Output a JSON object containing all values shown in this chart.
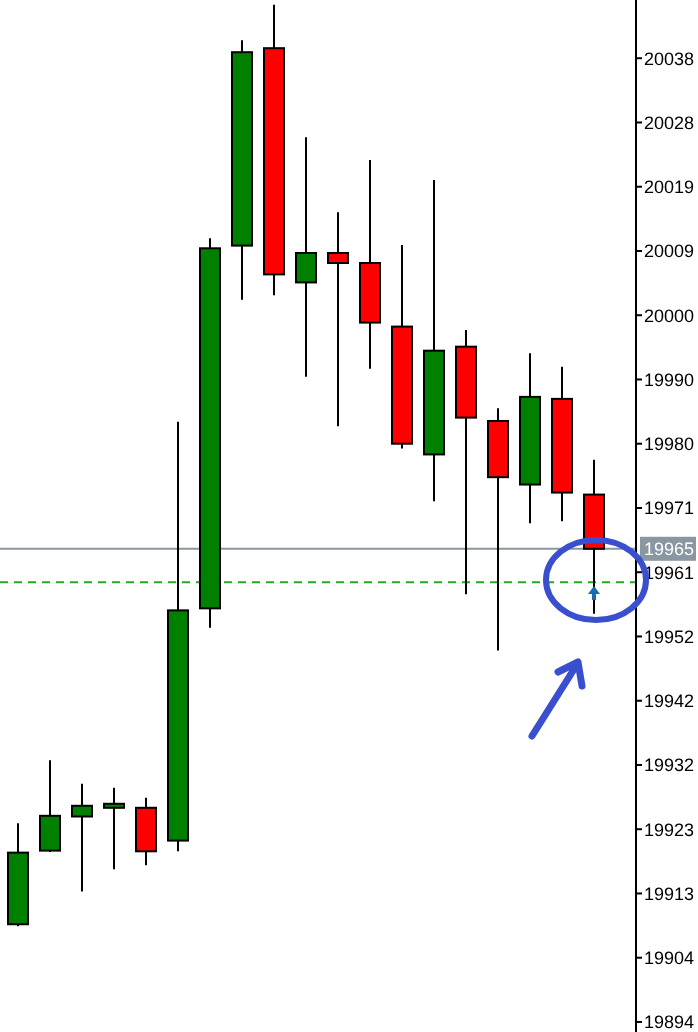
{
  "chart_data": {
    "type": "candlestick",
    "categories": [
      null,
      null,
      null,
      null,
      null,
      null,
      null,
      null,
      null,
      null,
      null,
      null,
      null,
      null,
      null,
      null,
      null,
      null,
      null
    ],
    "ohlc": [
      [
        19908.6,
        19923.7,
        19908.3,
        19919.3
      ],
      [
        19919.6,
        19933.1,
        19919.4,
        19924.8
      ],
      [
        19924.7,
        19929.6,
        19913.5,
        19926.3
      ],
      [
        19926.0,
        19929.0,
        19916.8,
        19926.6
      ],
      [
        19926.0,
        19927.5,
        19917.4,
        19919.5
      ],
      [
        19921.1,
        19983.7,
        19919.5,
        19955.5
      ],
      [
        19955.8,
        20011.1,
        19952.9,
        20009.6
      ],
      [
        20010.0,
        20040.7,
        20001.9,
        20038.9
      ],
      [
        20039.5,
        20046.0,
        20002.6,
        20005.7
      ],
      [
        20004.5,
        20026.2,
        19990.4,
        20008.9
      ],
      [
        20008.9,
        20015.0,
        19983.0,
        20007.4
      ],
      [
        20007.4,
        20022.8,
        19991.6,
        19998.5
      ],
      [
        19997.9,
        20010.1,
        19979.7,
        19980.4
      ],
      [
        19978.8,
        20019.8,
        19971.8,
        19994.3
      ],
      [
        19994.9,
        19997.4,
        19957.9,
        19984.3
      ],
      [
        19983.8,
        19985.7,
        19949.5,
        19975.4
      ],
      [
        19974.3,
        19993.9,
        19968.5,
        19987.4
      ],
      [
        19987.1,
        19991.9,
        19968.8,
        19973.1
      ],
      [
        19972.8,
        19978.0,
        19955.0,
        19964.7
      ]
    ],
    "colors": [
      "#008000",
      "#008000",
      "#008000",
      "#008000",
      "#ff0000",
      "#008000",
      "#008000",
      "#008000",
      "#ff0000",
      "#008000",
      "#ff0000",
      "#ff0000",
      "#ff0000",
      "#008000",
      "#ff0000",
      "#ff0000",
      "#008000",
      "#ff0000",
      "#ff0000"
    ],
    "ylim": [
      19892.5,
      20046.7
    ],
    "yticks": [
      {
        "value": 19894,
        "label": "19894"
      },
      {
        "value": 19903.6,
        "label": "19904"
      },
      {
        "value": 19913.2,
        "label": "19913"
      },
      {
        "value": 19922.8,
        "label": "19923"
      },
      {
        "value": 19932.4,
        "label": "19932"
      },
      {
        "value": 19942,
        "label": "19942"
      },
      {
        "value": 19951.6,
        "label": "19952"
      },
      {
        "value": 19961.2,
        "label": "19961"
      },
      {
        "value": 19970.8,
        "label": "19971"
      },
      {
        "value": 19980.4,
        "label": "19980"
      },
      {
        "value": 19990,
        "label": "19990"
      },
      {
        "value": 19999.6,
        "label": "20000"
      },
      {
        "value": 20009.2,
        "label": "20009"
      },
      {
        "value": 20018.8,
        "label": "20019"
      },
      {
        "value": 20028.4,
        "label": "20028"
      },
      {
        "value": 20038,
        "label": "20038"
      }
    ],
    "ref_lines": [
      {
        "axis": "y",
        "value": 19964.7,
        "label": "19965",
        "color": "#8a96a0"
      },
      {
        "axis": "y",
        "value": 19959.7,
        "color": "#22aa22",
        "line_style": "dashed"
      }
    ]
  }
}
